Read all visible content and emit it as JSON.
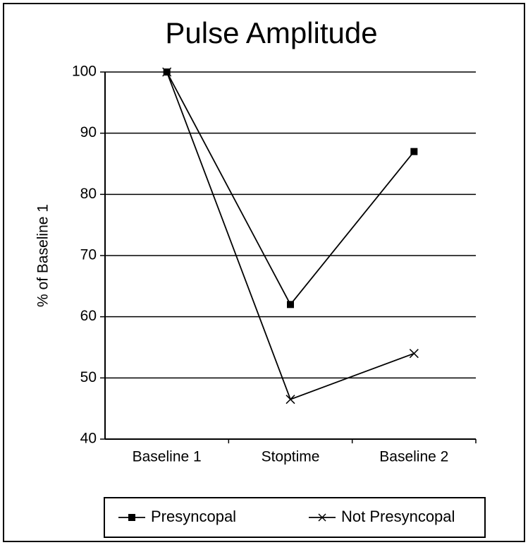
{
  "chart_data": {
    "type": "line",
    "title": "Pulse Amplitude",
    "ylabel": "% of Baseline 1",
    "categories": [
      "Baseline 1",
      "Stoptime",
      "Baseline 2"
    ],
    "series": [
      {
        "name": "Presyncopal",
        "color": "#000000",
        "marker": "square",
        "values": [
          100,
          62,
          87
        ]
      },
      {
        "name": "Not Presyncopal",
        "color": "#000000",
        "marker": "x",
        "values": [
          100,
          46.5,
          54
        ]
      }
    ],
    "ylim": [
      40,
      100
    ],
    "yticks": [
      40,
      50,
      60,
      70,
      80,
      90,
      100
    ],
    "grid": true,
    "legend": "bottom"
  }
}
